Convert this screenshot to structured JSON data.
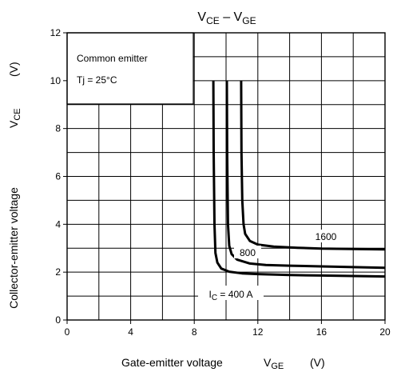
{
  "chart_data": {
    "type": "line",
    "title": {
      "base": "V",
      "sub1": "CE",
      "sep": " – V",
      "sub2": "GE"
    },
    "xlabel": {
      "text": "Gate-emitter voltage",
      "sym": "V",
      "sub": "GE",
      "unit": "(V)"
    },
    "ylabel": {
      "text": "Collector-emitter voltage",
      "sym": "V",
      "sub": "CE",
      "unit": "(V)"
    },
    "xlim": [
      0,
      20
    ],
    "ylim": [
      0,
      12
    ],
    "x_ticks": [
      0,
      4,
      8,
      12,
      16,
      20
    ],
    "x_tick_labels": [
      "0",
      "4",
      "8",
      "12",
      "16",
      "20"
    ],
    "y_ticks": [
      0,
      2,
      4,
      6,
      8,
      10,
      12
    ],
    "y_tick_labels": [
      "0",
      "2",
      "4",
      "6",
      "8",
      "10",
      "12"
    ],
    "grid": true,
    "x_minor_step": 2,
    "y_minor_step": 1,
    "conditions": {
      "line1": "Common emitter",
      "line2": "Tj = 25°C"
    },
    "series": [
      {
        "name": "400",
        "label": {
          "pre": "I",
          "sub": "C",
          "post": " = 400 A"
        },
        "points": [
          [
            9.2,
            10.0
          ],
          [
            9.22,
            7.0
          ],
          [
            9.27,
            4.0
          ],
          [
            9.33,
            2.8
          ],
          [
            9.45,
            2.4
          ],
          [
            9.7,
            2.15
          ],
          [
            10.2,
            2.02
          ],
          [
            11.0,
            1.95
          ],
          [
            12.0,
            1.92
          ],
          [
            14.0,
            1.88
          ],
          [
            16.0,
            1.86
          ],
          [
            20.0,
            1.82
          ]
        ]
      },
      {
        "name": "800",
        "label": {
          "text": "800"
        },
        "points": [
          [
            10.05,
            10.0
          ],
          [
            10.07,
            7.0
          ],
          [
            10.12,
            4.0
          ],
          [
            10.2,
            3.1
          ],
          [
            10.35,
            2.75
          ],
          [
            10.7,
            2.52
          ],
          [
            11.5,
            2.36
          ],
          [
            12.5,
            2.3
          ],
          [
            14.0,
            2.27
          ],
          [
            16.0,
            2.24
          ],
          [
            20.0,
            2.18
          ]
        ]
      },
      {
        "name": "1600",
        "label": {
          "text": "1600"
        },
        "points": [
          [
            10.95,
            10.0
          ],
          [
            10.97,
            7.0
          ],
          [
            11.02,
            5.0
          ],
          [
            11.1,
            4.0
          ],
          [
            11.2,
            3.6
          ],
          [
            11.5,
            3.3
          ],
          [
            12.0,
            3.15
          ],
          [
            13.0,
            3.07
          ],
          [
            14.5,
            3.02
          ],
          [
            16.0,
            2.98
          ],
          [
            20.0,
            2.95
          ]
        ]
      }
    ]
  }
}
